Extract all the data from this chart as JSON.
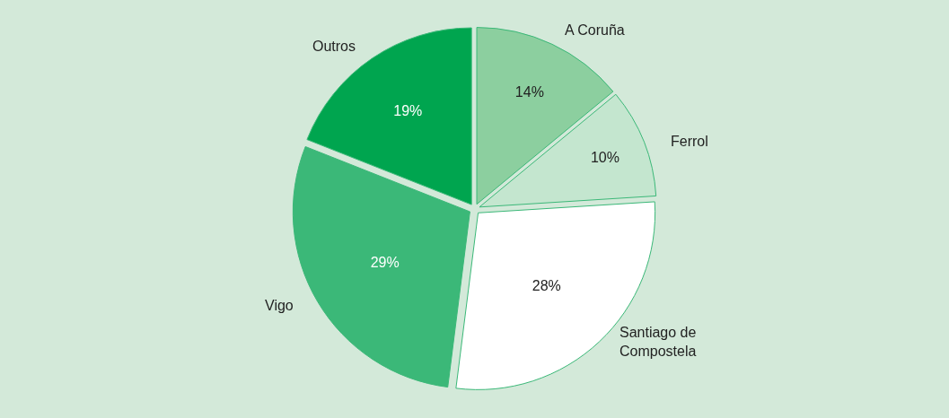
{
  "chart_data": {
    "type": "pie",
    "categories": [
      "A Coruña",
      "Ferrol",
      "Santiago de Compostela",
      "Vigo",
      "Outros"
    ],
    "values": [
      14,
      10,
      28,
      29,
      19
    ],
    "value_labels": [
      "14%",
      "10%",
      "28%",
      "29%",
      "19%"
    ],
    "colors": [
      "#8ccf9f",
      "#c4e6cf",
      "#ffffff",
      "#3bb878",
      "#00a54f"
    ],
    "legend": false
  }
}
